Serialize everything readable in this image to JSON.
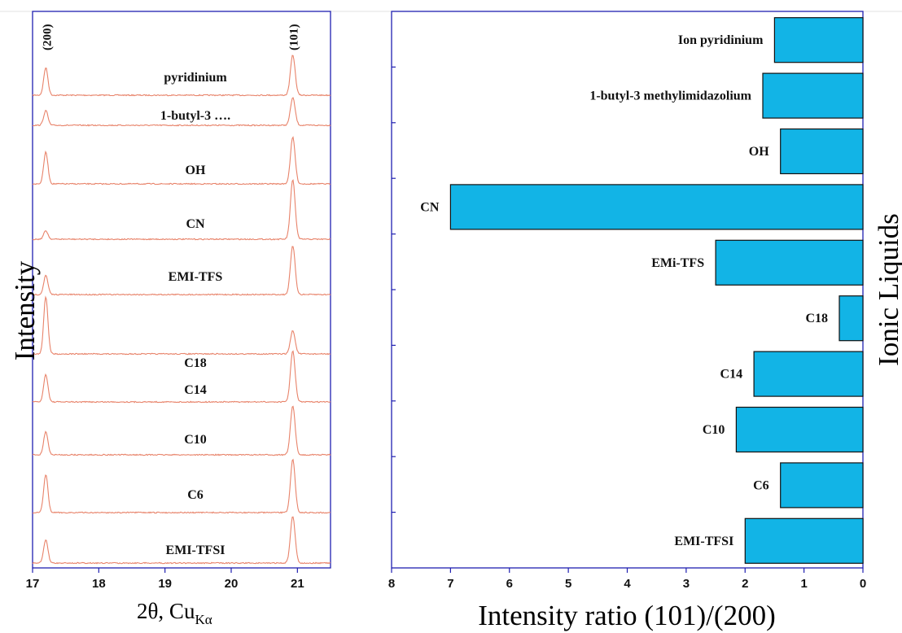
{
  "colors": {
    "frame": "#1f1fb0",
    "xrd_trace": "#e8836a",
    "bar_fill": "#12b4e6",
    "bar_stroke": "#111111",
    "text": "#111111",
    "background": "#ffffff"
  },
  "chart_data": [
    {
      "type": "line",
      "xlabel": "2θ, Cu",
      "xlabel_subscript": "Kα",
      "ylabel": "Intensity",
      "xlim": [
        17,
        21.5
      ],
      "xticks": [
        "17",
        "18",
        "19",
        "20",
        "21"
      ],
      "grid": false,
      "peak_labels": [
        {
          "text": "(200)",
          "x": 17.2
        },
        {
          "text": "(101)",
          "x": 20.93
        }
      ],
      "series": [
        {
          "name": "pyridinium",
          "peak200": 0.65,
          "peak101": 0.95
        },
        {
          "name": "1-butyl-3 ….",
          "peak200": 0.35,
          "peak101": 0.65
        },
        {
          "name": "OH",
          "peak200": 0.75,
          "peak101": 1.1
        },
        {
          "name": "CN",
          "peak200": 0.2,
          "peak101": 1.4
        },
        {
          "name": "EMI-TFS",
          "peak200": 0.45,
          "peak101": 1.15
        },
        {
          "name": "C18",
          "peak200": 1.35,
          "peak101": 0.55
        },
        {
          "name": "C14",
          "peak200": 0.65,
          "peak101": 1.2
        },
        {
          "name": "C10",
          "peak200": 0.55,
          "peak101": 1.15
        },
        {
          "name": "C6",
          "peak200": 0.9,
          "peak101": 1.25
        },
        {
          "name": "EMI-TFSI",
          "peak200": 0.55,
          "peak101": 1.1
        }
      ]
    },
    {
      "type": "bar",
      "orientation": "horizontal",
      "xlabel": "Intensity ratio (101)/(200)",
      "ylabel": "Ionic Liquids",
      "xlim": [
        0,
        8
      ],
      "x_reversed": true,
      "xticks": [
        "8",
        "7",
        "6",
        "5",
        "4",
        "3",
        "2",
        "1",
        "0"
      ],
      "grid": false,
      "categories": [
        "Ion pyridinium",
        "1-butyl-3 methylimidazolium",
        "OH",
        "CN",
        "EMi-TFS",
        "C18",
        "C14",
        "C10",
        "C6",
        "EMI-TFSI"
      ],
      "values": [
        1.5,
        1.7,
        1.4,
        7.0,
        2.5,
        0.4,
        1.85,
        2.15,
        1.4,
        2.0
      ]
    }
  ]
}
